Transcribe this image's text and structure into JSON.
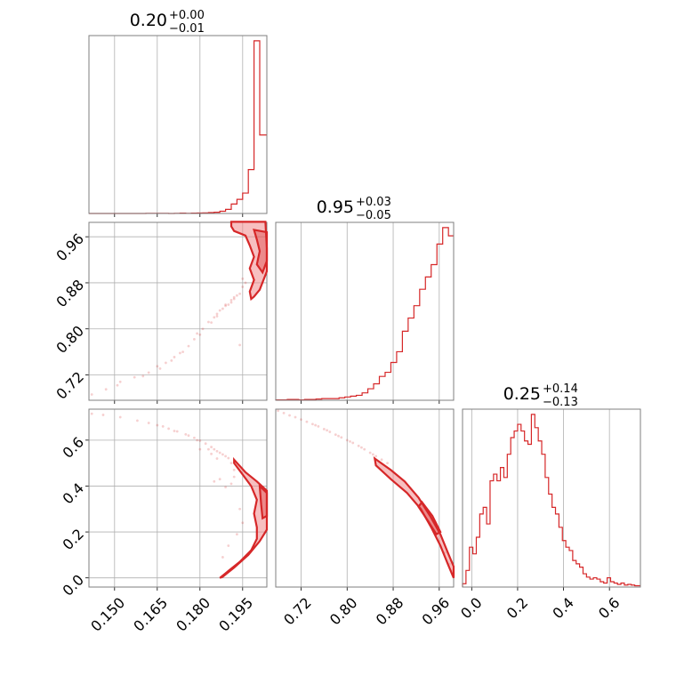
{
  "chart_data": {
    "type": "corner",
    "color": "#d62728",
    "parameters": [
      {
        "title_main": "0.20",
        "title_plus": "+0.00",
        "title_minus": "−0.01",
        "range": [
          0.141,
          0.2035
        ],
        "ticks": [
          0.15,
          0.165,
          0.18,
          0.195
        ],
        "tick_labels": [
          "0.150",
          "0.165",
          "0.180",
          "0.195"
        ]
      },
      {
        "title_main": "0.95",
        "title_plus": "+0.03",
        "title_minus": "−0.05",
        "range": [
          0.676,
          0.985
        ],
        "ticks": [
          0.72,
          0.8,
          0.88,
          0.96
        ],
        "tick_labels": [
          "0.72",
          "0.80",
          "0.88",
          "0.96"
        ]
      },
      {
        "title_main": "0.25",
        "title_plus": "+0.14",
        "title_minus": "−0.13",
        "range": [
          -0.04,
          0.735
        ],
        "ticks": [
          0.0,
          0.2,
          0.4,
          0.6
        ],
        "tick_labels": [
          "0.0",
          "0.2",
          "0.4",
          "0.6"
        ]
      }
    ],
    "histograms": [
      {
        "edges": [
          0.141,
          0.143,
          0.145,
          0.147,
          0.149,
          0.151,
          0.153,
          0.155,
          0.157,
          0.159,
          0.161,
          0.163,
          0.165,
          0.167,
          0.169,
          0.171,
          0.173,
          0.175,
          0.177,
          0.179,
          0.181,
          0.183,
          0.185,
          0.187,
          0.189,
          0.191,
          0.193,
          0.195,
          0.197,
          0.199,
          0.201,
          0.2035
        ],
        "counts": [
          0,
          0,
          0,
          0,
          0,
          0,
          0,
          0,
          0,
          0,
          1,
          1,
          1,
          1,
          0,
          1,
          2,
          1,
          2,
          3,
          4,
          6,
          8,
          14,
          26,
          60,
          90,
          130,
          280,
          1100,
          500
        ]
      },
      {
        "edges": [
          0.676,
          0.686,
          0.696,
          0.706,
          0.716,
          0.726,
          0.736,
          0.746,
          0.756,
          0.766,
          0.776,
          0.786,
          0.796,
          0.806,
          0.816,
          0.826,
          0.836,
          0.846,
          0.856,
          0.866,
          0.876,
          0.886,
          0.896,
          0.906,
          0.916,
          0.926,
          0.936,
          0.946,
          0.956,
          0.966,
          0.976,
          0.985
        ],
        "counts": [
          1,
          1,
          2,
          2,
          1,
          2,
          2,
          3,
          4,
          4,
          4,
          6,
          8,
          10,
          12,
          18,
          28,
          40,
          58,
          68,
          92,
          118,
          168,
          200,
          230,
          270,
          300,
          330,
          380,
          420,
          400
        ]
      },
      {
        "edges": [
          -0.04,
          -0.025,
          -0.01,
          0.005,
          0.02,
          0.035,
          0.05,
          0.065,
          0.08,
          0.095,
          0.11,
          0.125,
          0.14,
          0.155,
          0.17,
          0.185,
          0.2,
          0.215,
          0.23,
          0.245,
          0.26,
          0.275,
          0.29,
          0.305,
          0.32,
          0.335,
          0.35,
          0.365,
          0.38,
          0.395,
          0.41,
          0.425,
          0.44,
          0.455,
          0.47,
          0.485,
          0.5,
          0.515,
          0.53,
          0.545,
          0.56,
          0.575,
          0.59,
          0.605,
          0.62,
          0.635,
          0.65,
          0.665,
          0.68,
          0.695,
          0.71,
          0.735
        ],
        "counts": [
          5,
          25,
          60,
          50,
          75,
          110,
          120,
          95,
          160,
          170,
          160,
          180,
          165,
          200,
          225,
          235,
          245,
          235,
          220,
          215,
          260,
          240,
          220,
          200,
          165,
          140,
          120,
          110,
          90,
          70,
          60,
          55,
          40,
          35,
          30,
          20,
          15,
          12,
          14,
          12,
          8,
          6,
          14,
          8,
          6,
          4,
          6,
          3,
          4,
          3,
          2
        ]
      }
    ],
    "pairs": [
      {
        "x_param": 0,
        "y_param": 1,
        "contours": [
          {
            "level": "outer",
            "points": [
              [
                0.191,
                0.986
              ],
              [
                0.203,
                0.986
              ],
              [
                0.2035,
                0.94
              ],
              [
                0.2035,
                0.9
              ],
              [
                0.201,
                0.868
              ],
              [
                0.199,
                0.856
              ],
              [
                0.198,
                0.852
              ],
              [
                0.1975,
                0.865
              ],
              [
                0.199,
                0.885
              ],
              [
                0.1975,
                0.905
              ],
              [
                0.199,
                0.925
              ],
              [
                0.1975,
                0.945
              ],
              [
                0.196,
                0.962
              ],
              [
                0.192,
                0.97
              ],
              [
                0.191,
                0.978
              ]
            ]
          },
          {
            "level": "inner",
            "points": [
              [
                0.199,
                0.972
              ],
              [
                0.2035,
                0.968
              ],
              [
                0.2035,
                0.918
              ],
              [
                0.202,
                0.898
              ],
              [
                0.2,
                0.912
              ],
              [
                0.201,
                0.935
              ],
              [
                0.2,
                0.955
              ]
            ]
          }
        ],
        "points": [
          [
            0.142,
            0.686
          ],
          [
            0.147,
            0.695
          ],
          [
            0.151,
            0.702
          ],
          [
            0.157,
            0.716
          ],
          [
            0.16,
            0.718
          ],
          [
            0.165,
            0.735
          ],
          [
            0.166,
            0.731
          ],
          [
            0.17,
            0.745
          ],
          [
            0.173,
            0.758
          ],
          [
            0.176,
            0.77
          ],
          [
            0.178,
            0.782
          ],
          [
            0.18,
            0.79
          ],
          [
            0.181,
            0.8
          ],
          [
            0.183,
            0.812
          ],
          [
            0.185,
            0.82
          ],
          [
            0.186,
            0.826
          ],
          [
            0.187,
            0.832
          ],
          [
            0.188,
            0.835
          ],
          [
            0.189,
            0.84
          ],
          [
            0.19,
            0.842
          ],
          [
            0.191,
            0.846
          ],
          [
            0.192,
            0.852
          ],
          [
            0.193,
            0.858
          ],
          [
            0.194,
            0.861
          ],
          [
            0.195,
            0.873
          ],
          [
            0.196,
            0.88
          ],
          [
            0.195,
            0.887
          ],
          [
            0.194,
            0.772
          ],
          [
            0.189,
            0.842
          ],
          [
            0.184,
            0.811
          ],
          [
            0.179,
            0.792
          ],
          [
            0.174,
            0.76
          ],
          [
            0.168,
            0.741
          ],
          [
            0.162,
            0.724
          ],
          [
            0.152,
            0.708
          ],
          [
            0.171,
            0.751
          ],
          [
            0.186,
            0.822
          ],
          [
            0.191,
            0.85
          ],
          [
            0.192,
            0.855
          ]
        ]
      },
      {
        "x_param": 0,
        "y_param": 2,
        "contours": [
          {
            "level": "outer",
            "points": [
              [
                0.192,
                0.515
              ],
              [
                0.196,
                0.46
              ],
              [
                0.2,
                0.42
              ],
              [
                0.2035,
                0.38
              ],
              [
                0.2035,
                0.21
              ],
              [
                0.201,
                0.16
              ],
              [
                0.197,
                0.1
              ],
              [
                0.192,
                0.045
              ],
              [
                0.188,
                0.005
              ],
              [
                0.187,
                0.0
              ],
              [
                0.19,
                0.03
              ],
              [
                0.194,
                0.07
              ],
              [
                0.198,
                0.12
              ],
              [
                0.2,
                0.17
              ],
              [
                0.2,
                0.22
              ],
              [
                0.199,
                0.28
              ],
              [
                0.2,
                0.34
              ],
              [
                0.198,
                0.4
              ],
              [
                0.195,
                0.45
              ],
              [
                0.192,
                0.5
              ]
            ]
          },
          {
            "level": "inner",
            "points": [
              [
                0.201,
                0.4
              ],
              [
                0.2035,
                0.37
              ],
              [
                0.2035,
                0.27
              ],
              [
                0.202,
                0.26
              ],
              [
                0.2015,
                0.32
              ]
            ]
          }
        ],
        "points": [
          [
            0.142,
            0.715
          ],
          [
            0.146,
            0.71
          ],
          [
            0.152,
            0.7
          ],
          [
            0.158,
            0.685
          ],
          [
            0.162,
            0.675
          ],
          [
            0.165,
            0.665
          ],
          [
            0.169,
            0.65
          ],
          [
            0.172,
            0.638
          ],
          [
            0.175,
            0.625
          ],
          [
            0.178,
            0.61
          ],
          [
            0.18,
            0.598
          ],
          [
            0.182,
            0.585
          ],
          [
            0.184,
            0.57
          ],
          [
            0.185,
            0.56
          ],
          [
            0.186,
            0.552
          ],
          [
            0.187,
            0.545
          ],
          [
            0.188,
            0.538
          ],
          [
            0.189,
            0.53
          ],
          [
            0.19,
            0.522
          ],
          [
            0.191,
            0.5
          ],
          [
            0.192,
            0.47
          ],
          [
            0.192,
            0.44
          ],
          [
            0.191,
            0.41
          ],
          [
            0.189,
            0.395
          ],
          [
            0.186,
            0.52
          ],
          [
            0.183,
            0.56
          ],
          [
            0.179,
            0.6
          ],
          [
            0.176,
            0.62
          ],
          [
            0.171,
            0.64
          ],
          [
            0.167,
            0.66
          ],
          [
            0.18,
            0.56
          ],
          [
            0.184,
            0.54
          ],
          [
            0.187,
            0.43
          ],
          [
            0.185,
            0.42
          ],
          [
            0.188,
            0.09
          ],
          [
            0.19,
            0.14
          ],
          [
            0.193,
            0.19
          ],
          [
            0.195,
            0.24
          ],
          [
            0.194,
            0.3
          ]
        ]
      },
      {
        "x_param": 1,
        "y_param": 2,
        "contours": [
          {
            "level": "outer",
            "points": [
              [
                0.848,
                0.52
              ],
              [
                0.876,
                0.47
              ],
              [
                0.9,
                0.42
              ],
              [
                0.924,
                0.35
              ],
              [
                0.944,
                0.27
              ],
              [
                0.962,
                0.19
              ],
              [
                0.975,
                0.11
              ],
              [
                0.985,
                0.05
              ],
              [
                0.985,
                0.0
              ],
              [
                0.975,
                0.06
              ],
              [
                0.962,
                0.14
              ],
              [
                0.946,
                0.22
              ],
              [
                0.928,
                0.3
              ],
              [
                0.904,
                0.37
              ],
              [
                0.876,
                0.43
              ],
              [
                0.85,
                0.49
              ]
            ]
          },
          {
            "level": "inner",
            "points": [
              [
                0.93,
                0.33
              ],
              [
                0.948,
                0.27
              ],
              [
                0.962,
                0.2
              ],
              [
                0.955,
                0.19
              ],
              [
                0.94,
                0.25
              ],
              [
                0.924,
                0.31
              ]
            ]
          }
        ],
        "points": [
          [
            0.68,
            0.728
          ],
          [
            0.69,
            0.718
          ],
          [
            0.7,
            0.708
          ],
          [
            0.71,
            0.7
          ],
          [
            0.72,
            0.69
          ],
          [
            0.73,
            0.68
          ],
          [
            0.74,
            0.67
          ],
          [
            0.75,
            0.66
          ],
          [
            0.76,
            0.648
          ],
          [
            0.77,
            0.636
          ],
          [
            0.78,
            0.624
          ],
          [
            0.79,
            0.612
          ],
          [
            0.8,
            0.6
          ],
          [
            0.81,
            0.588
          ],
          [
            0.82,
            0.575
          ],
          [
            0.83,
            0.56
          ],
          [
            0.84,
            0.545
          ],
          [
            0.85,
            0.53
          ],
          [
            0.86,
            0.515
          ],
          [
            0.87,
            0.5
          ],
          [
            0.745,
            0.665
          ],
          [
            0.765,
            0.643
          ],
          [
            0.785,
            0.618
          ],
          [
            0.805,
            0.594
          ],
          [
            0.825,
            0.568
          ],
          [
            0.845,
            0.538
          ],
          [
            0.978,
            0.06
          ],
          [
            0.982,
            0.03
          ],
          [
            0.97,
            0.11
          ],
          [
            0.96,
            0.16
          ]
        ]
      }
    ]
  }
}
